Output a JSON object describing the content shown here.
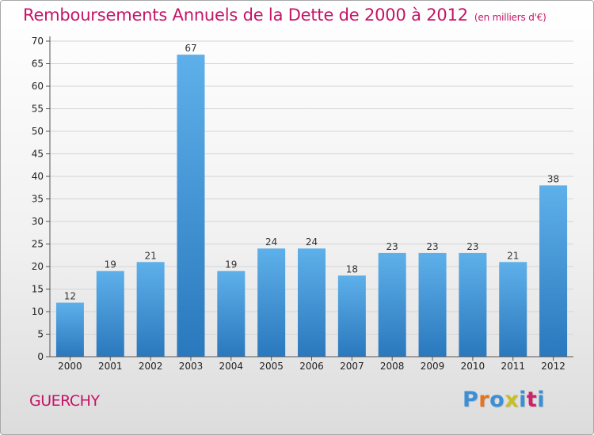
{
  "header": {
    "title": "Remboursements Annuels de la Dette de 2000 à 2012",
    "subtitle": "(en milliers d'€)"
  },
  "footer": {
    "commune": "GUERCHY",
    "logo_text": "Proxiti",
    "logo_colors": [
      "#3a8fd6",
      "#e8731e",
      "#3a8fd6",
      "#c8c020",
      "#3a8fd6",
      "#d0206a",
      "#3a8fd6"
    ]
  },
  "colors": {
    "bar_top": "#5eb0ea",
    "bar_bottom": "#2a78bd",
    "grid": "#d4d4d4",
    "axis": "#555555",
    "title": "#c41466"
  },
  "chart_data": {
    "type": "bar",
    "categories": [
      "2000",
      "2001",
      "2002",
      "2003",
      "2004",
      "2005",
      "2006",
      "2007",
      "2008",
      "2009",
      "2010",
      "2011",
      "2012"
    ],
    "values": [
      12,
      19,
      21,
      67,
      19,
      24,
      24,
      18,
      23,
      23,
      23,
      21,
      38
    ],
    "y_ticks": [
      0,
      5,
      10,
      15,
      20,
      25,
      30,
      35,
      40,
      45,
      50,
      55,
      60,
      65,
      70
    ],
    "ylim": [
      0,
      70
    ],
    "grid": true,
    "data_labels": true
  }
}
